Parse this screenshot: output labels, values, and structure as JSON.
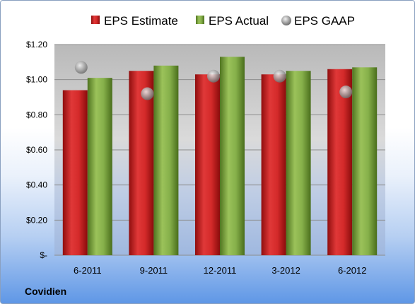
{
  "chart_data": {
    "type": "bar",
    "categories": [
      "6-2011",
      "9-2011",
      "12-2011",
      "3-2012",
      "6-2012"
    ],
    "series": [
      {
        "name": "EPS Estimate",
        "kind": "bar",
        "color": "#d42a2a",
        "values": [
          0.94,
          1.05,
          1.03,
          1.03,
          1.06
        ]
      },
      {
        "name": "EPS Actual",
        "kind": "bar",
        "color": "#7fa843",
        "values": [
          1.01,
          1.08,
          1.13,
          1.05,
          1.07
        ]
      },
      {
        "name": "EPS GAAP",
        "kind": "marker",
        "color": "#a8a8a8",
        "values": [
          1.07,
          0.92,
          1.02,
          1.02,
          0.93
        ]
      }
    ],
    "ylim": [
      0,
      1.2
    ],
    "yticks": [
      0,
      0.2,
      0.4,
      0.6,
      0.8,
      1.0,
      1.2
    ],
    "ytick_labels": [
      "$-",
      "$0.20",
      "$0.40",
      "$0.60",
      "$0.80",
      "$1.00",
      "$1.20"
    ],
    "grid": true,
    "legend": "top"
  },
  "company_label": "Covidien"
}
